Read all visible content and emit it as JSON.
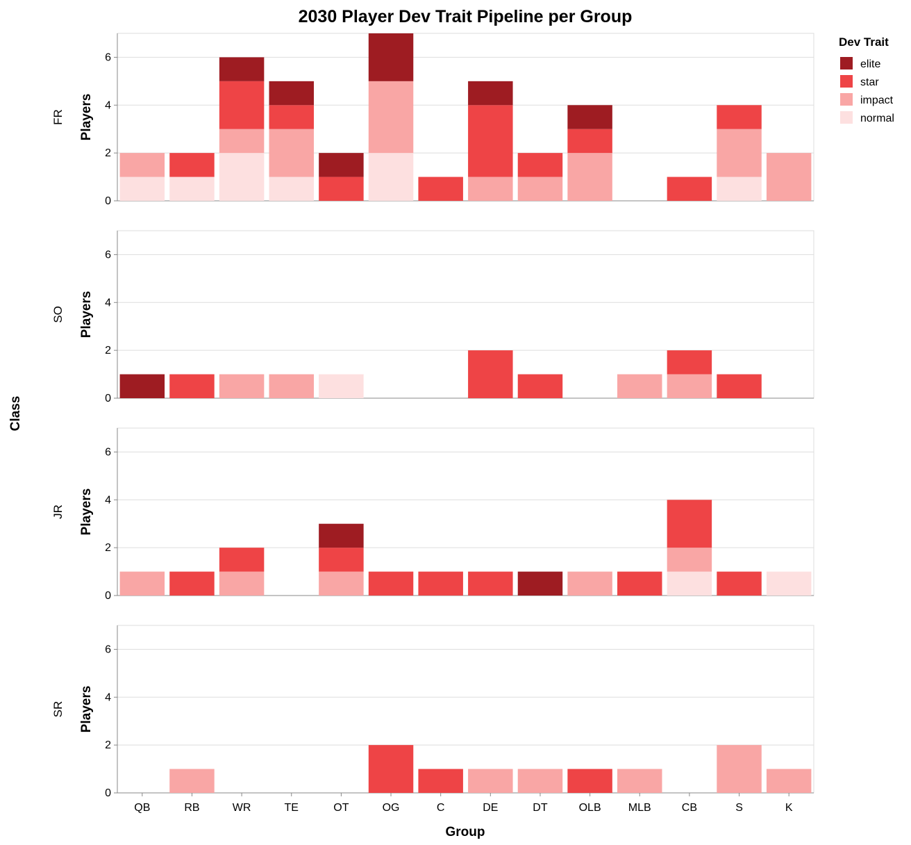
{
  "chart_data": {
    "type": "bar",
    "stacked": true,
    "title": "2030 Player Dev Trait Pipeline per Group",
    "xlabel": "Group",
    "ylabel": "Players",
    "row_title": "Class",
    "ylim": [
      0,
      7
    ],
    "yticks": [
      0,
      2,
      4,
      6
    ],
    "grid": true,
    "legend": {
      "title": "Dev Trait",
      "placement": "top-right"
    },
    "categories": [
      "QB",
      "RB",
      "WR",
      "TE",
      "OT",
      "OG",
      "C",
      "DE",
      "DT",
      "OLB",
      "MLB",
      "CB",
      "S",
      "K"
    ],
    "traits": [
      "elite",
      "star",
      "impact",
      "normal"
    ],
    "colors": {
      "elite": "#9e1c22",
      "star": "#ee4446",
      "impact": "#f9a6a5",
      "normal": "#fde0e0"
    },
    "facets": [
      {
        "class": "FR",
        "series": [
          {
            "name": "normal",
            "values": [
              1,
              1,
              2,
              1,
              0,
              2,
              0,
              0,
              0,
              0,
              0,
              0,
              1,
              0
            ]
          },
          {
            "name": "impact",
            "values": [
              1,
              0,
              1,
              2,
              0,
              3,
              0,
              1,
              1,
              2,
              0,
              0,
              2,
              2
            ]
          },
          {
            "name": "star",
            "values": [
              0,
              1,
              2,
              1,
              1,
              0,
              1,
              3,
              1,
              1,
              0,
              1,
              1,
              0
            ]
          },
          {
            "name": "elite",
            "values": [
              0,
              0,
              1,
              1,
              1,
              2,
              0,
              1,
              0,
              1,
              0,
              0,
              0,
              0
            ]
          }
        ]
      },
      {
        "class": "SO",
        "series": [
          {
            "name": "normal",
            "values": [
              0,
              0,
              0,
              0,
              1,
              0,
              0,
              0,
              0,
              0,
              0,
              0,
              0,
              0
            ]
          },
          {
            "name": "impact",
            "values": [
              0,
              0,
              1,
              1,
              0,
              0,
              0,
              0,
              0,
              0,
              1,
              1,
              0,
              0
            ]
          },
          {
            "name": "star",
            "values": [
              0,
              1,
              0,
              0,
              0,
              0,
              0,
              2,
              1,
              0,
              0,
              1,
              1,
              0
            ]
          },
          {
            "name": "elite",
            "values": [
              1,
              0,
              0,
              0,
              0,
              0,
              0,
              0,
              0,
              0,
              0,
              0,
              0,
              0
            ]
          }
        ]
      },
      {
        "class": "JR",
        "series": [
          {
            "name": "normal",
            "values": [
              0,
              0,
              0,
              0,
              0,
              0,
              0,
              0,
              0,
              0,
              0,
              1,
              0,
              1
            ]
          },
          {
            "name": "impact",
            "values": [
              1,
              0,
              1,
              0,
              1,
              0,
              0,
              0,
              0,
              1,
              0,
              1,
              0,
              0
            ]
          },
          {
            "name": "star",
            "values": [
              0,
              1,
              1,
              0,
              1,
              1,
              1,
              1,
              0,
              0,
              1,
              2,
              1,
              0
            ]
          },
          {
            "name": "elite",
            "values": [
              0,
              0,
              0,
              0,
              1,
              0,
              0,
              0,
              1,
              0,
              0,
              0,
              0,
              0
            ]
          }
        ]
      },
      {
        "class": "SR",
        "series": [
          {
            "name": "normal",
            "values": [
              0,
              0,
              0,
              0,
              0,
              0,
              0,
              0,
              0,
              0,
              0,
              0,
              0,
              0
            ]
          },
          {
            "name": "impact",
            "values": [
              0,
              1,
              0,
              0,
              0,
              0,
              0,
              1,
              1,
              0,
              1,
              0,
              2,
              1
            ]
          },
          {
            "name": "star",
            "values": [
              0,
              0,
              0,
              0,
              0,
              2,
              1,
              0,
              0,
              1,
              0,
              0,
              0,
              0
            ]
          },
          {
            "name": "elite",
            "values": [
              0,
              0,
              0,
              0,
              0,
              0,
              0,
              0,
              0,
              0,
              0,
              0,
              0,
              0
            ]
          }
        ]
      }
    ]
  }
}
